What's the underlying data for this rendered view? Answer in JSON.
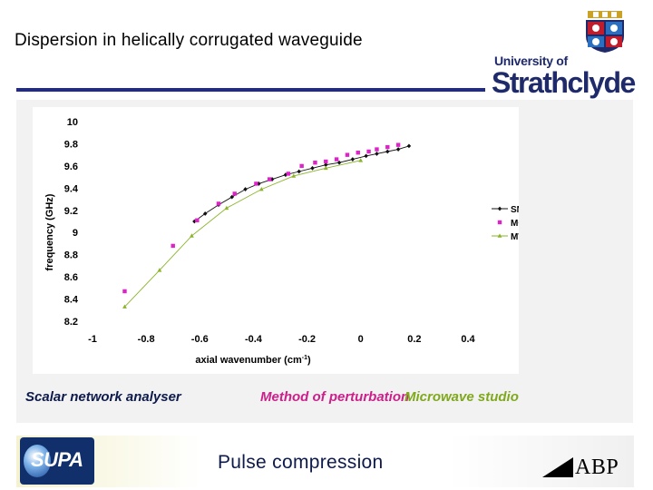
{
  "slide": {
    "title": "Dispersion in helically corrugated waveguide",
    "logo_university_of": "University of",
    "logo_name": "Strathclyde",
    "footer_text": "Pulse compression",
    "footer_logo_left": "SUPA",
    "footer_logo_right": "ABP",
    "method_labels": {
      "sna": "Scalar network analyser",
      "mop": "Method of perturbation",
      "mws": "Microwave studio"
    }
  },
  "chart_data": {
    "type": "line",
    "xlabel": "axial wavenumber (cm",
    "xlabel_sup": "-1",
    "xlabel_end": ")",
    "ylabel": "frequency (GHz)",
    "xlim": [
      -1,
      0.4
    ],
    "ylim": [
      8.2,
      10
    ],
    "x_ticks": [
      -1,
      -0.8,
      -0.6,
      -0.4,
      -0.2,
      0,
      0.2,
      0.4
    ],
    "x_tick_labels": [
      "-1",
      "-0.8",
      "-0.6",
      "-0.4",
      "-0.2",
      "0",
      "0.2",
      "0.4"
    ],
    "y_ticks": [
      8.2,
      8.4,
      8.6,
      8.8,
      9,
      9.2,
      9.4,
      9.6,
      9.8,
      10
    ],
    "y_tick_labels": [
      "8.2",
      "8.4",
      "8.6",
      "8.8",
      "9",
      "9.2",
      "9.4",
      "9.6",
      "9.8",
      "10"
    ],
    "grid": false,
    "legend_position": "right",
    "series": [
      {
        "name": "SNA",
        "color": "#111111",
        "marker": "diamond",
        "line": true,
        "x": [
          -0.62,
          -0.58,
          -0.53,
          -0.48,
          -0.43,
          -0.38,
          -0.33,
          -0.28,
          -0.23,
          -0.18,
          -0.13,
          -0.08,
          -0.03,
          0.02,
          0.06,
          0.1,
          0.14,
          0.18
        ],
        "y": [
          9.1,
          9.17,
          9.25,
          9.32,
          9.39,
          9.44,
          9.48,
          9.52,
          9.55,
          9.58,
          9.61,
          9.63,
          9.66,
          9.69,
          9.71,
          9.73,
          9.75,
          9.78
        ]
      },
      {
        "name": "MOP",
        "color": "#e020c8",
        "marker": "square",
        "line": false,
        "x": [
          -0.88,
          -0.7,
          -0.61,
          -0.53,
          -0.47,
          -0.39,
          -0.34,
          -0.27,
          -0.22,
          -0.17,
          -0.13,
          -0.09,
          -0.05,
          -0.01,
          0.03,
          0.06,
          0.1,
          0.14
        ],
        "y": [
          8.47,
          8.88,
          9.11,
          9.26,
          9.35,
          9.44,
          9.48,
          9.53,
          9.6,
          9.63,
          9.64,
          9.66,
          9.7,
          9.72,
          9.73,
          9.75,
          9.77,
          9.79
        ]
      },
      {
        "name": "MWS",
        "color": "#8ab52a",
        "marker": "triangle",
        "line": true,
        "x": [
          -0.88,
          -0.75,
          -0.63,
          -0.5,
          -0.37,
          -0.25,
          -0.13,
          0.0
        ],
        "y": [
          8.33,
          8.66,
          8.97,
          9.22,
          9.39,
          9.51,
          9.58,
          9.65
        ]
      }
    ]
  }
}
